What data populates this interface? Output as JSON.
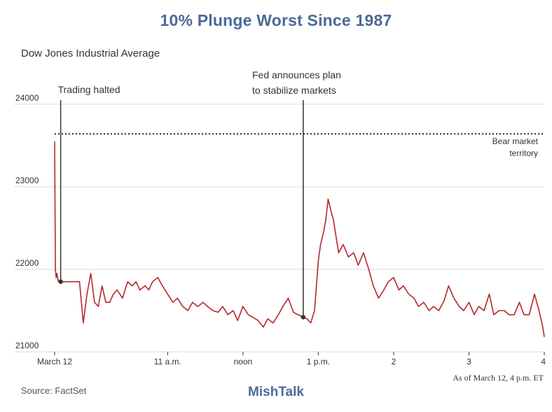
{
  "title": "10% Plunge Worst Since 1987",
  "subtitle": "Dow Jones Industrial Average",
  "source": "Source: FactSet",
  "brand": "MishTalk",
  "as_of": "As of March 12, 4 p.m. ET",
  "colors": {
    "title": "#4b6a99",
    "line": "#b5282d",
    "grid": "#d9d9d9"
  },
  "chart_data": {
    "type": "line",
    "title": "10% Plunge Worst Since 1987",
    "ylabel": "Dow Jones Industrial Average",
    "xlabel": "",
    "xlim": [
      9.5,
      16.0
    ],
    "ylim": [
      21000,
      24000
    ],
    "y_ticks": [
      24000,
      23000,
      22000,
      21000
    ],
    "x_ticks": [
      {
        "value": 9.5,
        "label": "March 12"
      },
      {
        "value": 11.0,
        "label": "11 a.m."
      },
      {
        "value": 12.0,
        "label": "noon"
      },
      {
        "value": 13.0,
        "label": "1 p.m."
      },
      {
        "value": 14.0,
        "label": "2"
      },
      {
        "value": 15.0,
        "label": "3"
      },
      {
        "value": 16.0,
        "label": "4"
      }
    ],
    "bear_market_threshold": 23641,
    "annotations": [
      {
        "label": "Trading halted",
        "x": 9.58,
        "y": 21850
      },
      {
        "label": "Fed announces plan to stabilize markets",
        "x": 12.8,
        "y": 21420
      },
      {
        "label": "Bear market territory",
        "y": 23641
      }
    ],
    "series": [
      {
        "name": "Dow Jones Industrial Average",
        "x": [
          9.5,
          9.51,
          9.52,
          9.53,
          9.55,
          9.57,
          9.6,
          9.65,
          9.7,
          9.75,
          9.83,
          9.88,
          9.93,
          9.98,
          10.03,
          10.08,
          10.13,
          10.18,
          10.23,
          10.28,
          10.33,
          10.4,
          10.47,
          10.53,
          10.58,
          10.63,
          10.7,
          10.75,
          10.8,
          10.87,
          10.93,
          11.0,
          11.07,
          11.13,
          11.2,
          11.27,
          11.33,
          11.4,
          11.47,
          11.53,
          11.6,
          11.67,
          11.73,
          11.8,
          11.87,
          11.93,
          12.0,
          12.07,
          12.13,
          12.2,
          12.27,
          12.33,
          12.4,
          12.47,
          12.53,
          12.6,
          12.67,
          12.73,
          12.8,
          12.85,
          12.9,
          12.95,
          13.0,
          13.03,
          13.07,
          13.1,
          13.13,
          13.17,
          13.2,
          13.27,
          13.33,
          13.4,
          13.47,
          13.53,
          13.6,
          13.67,
          13.73,
          13.8,
          13.87,
          13.93,
          14.0,
          14.07,
          14.13,
          14.2,
          14.27,
          14.33,
          14.4,
          14.47,
          14.53,
          14.6,
          14.67,
          14.73,
          14.8,
          14.87,
          14.93,
          15.0,
          15.07,
          15.13,
          15.2,
          15.27,
          15.33,
          15.4,
          15.47,
          15.53,
          15.6,
          15.67,
          15.73,
          15.8,
          15.87,
          15.93,
          15.98,
          16.0
        ],
        "values": [
          23550,
          22000,
          21900,
          21950,
          21850,
          21850,
          21850,
          21850,
          21850,
          21850,
          21850,
          21350,
          21700,
          21950,
          21600,
          21550,
          21800,
          21600,
          21600,
          21700,
          21750,
          21650,
          21850,
          21800,
          21850,
          21750,
          21800,
          21750,
          21850,
          21900,
          21800,
          21700,
          21600,
          21650,
          21550,
          21500,
          21600,
          21550,
          21600,
          21550,
          21500,
          21480,
          21550,
          21450,
          21500,
          21380,
          21550,
          21450,
          21420,
          21380,
          21300,
          21400,
          21350,
          21450,
          21550,
          21650,
          21480,
          21450,
          21420,
          21400,
          21350,
          21500,
          22100,
          22300,
          22450,
          22600,
          22850,
          22700,
          22600,
          22200,
          22300,
          22150,
          22200,
          22050,
          22200,
          22000,
          21800,
          21650,
          21750,
          21850,
          21900,
          21750,
          21800,
          21700,
          21650,
          21550,
          21600,
          21500,
          21550,
          21500,
          21620,
          21800,
          21650,
          21550,
          21500,
          21600,
          21450,
          21550,
          21500,
          21700,
          21450,
          21500,
          21500,
          21450,
          21450,
          21600,
          21450,
          21450,
          21700,
          21500,
          21300,
          21180
        ]
      }
    ]
  }
}
